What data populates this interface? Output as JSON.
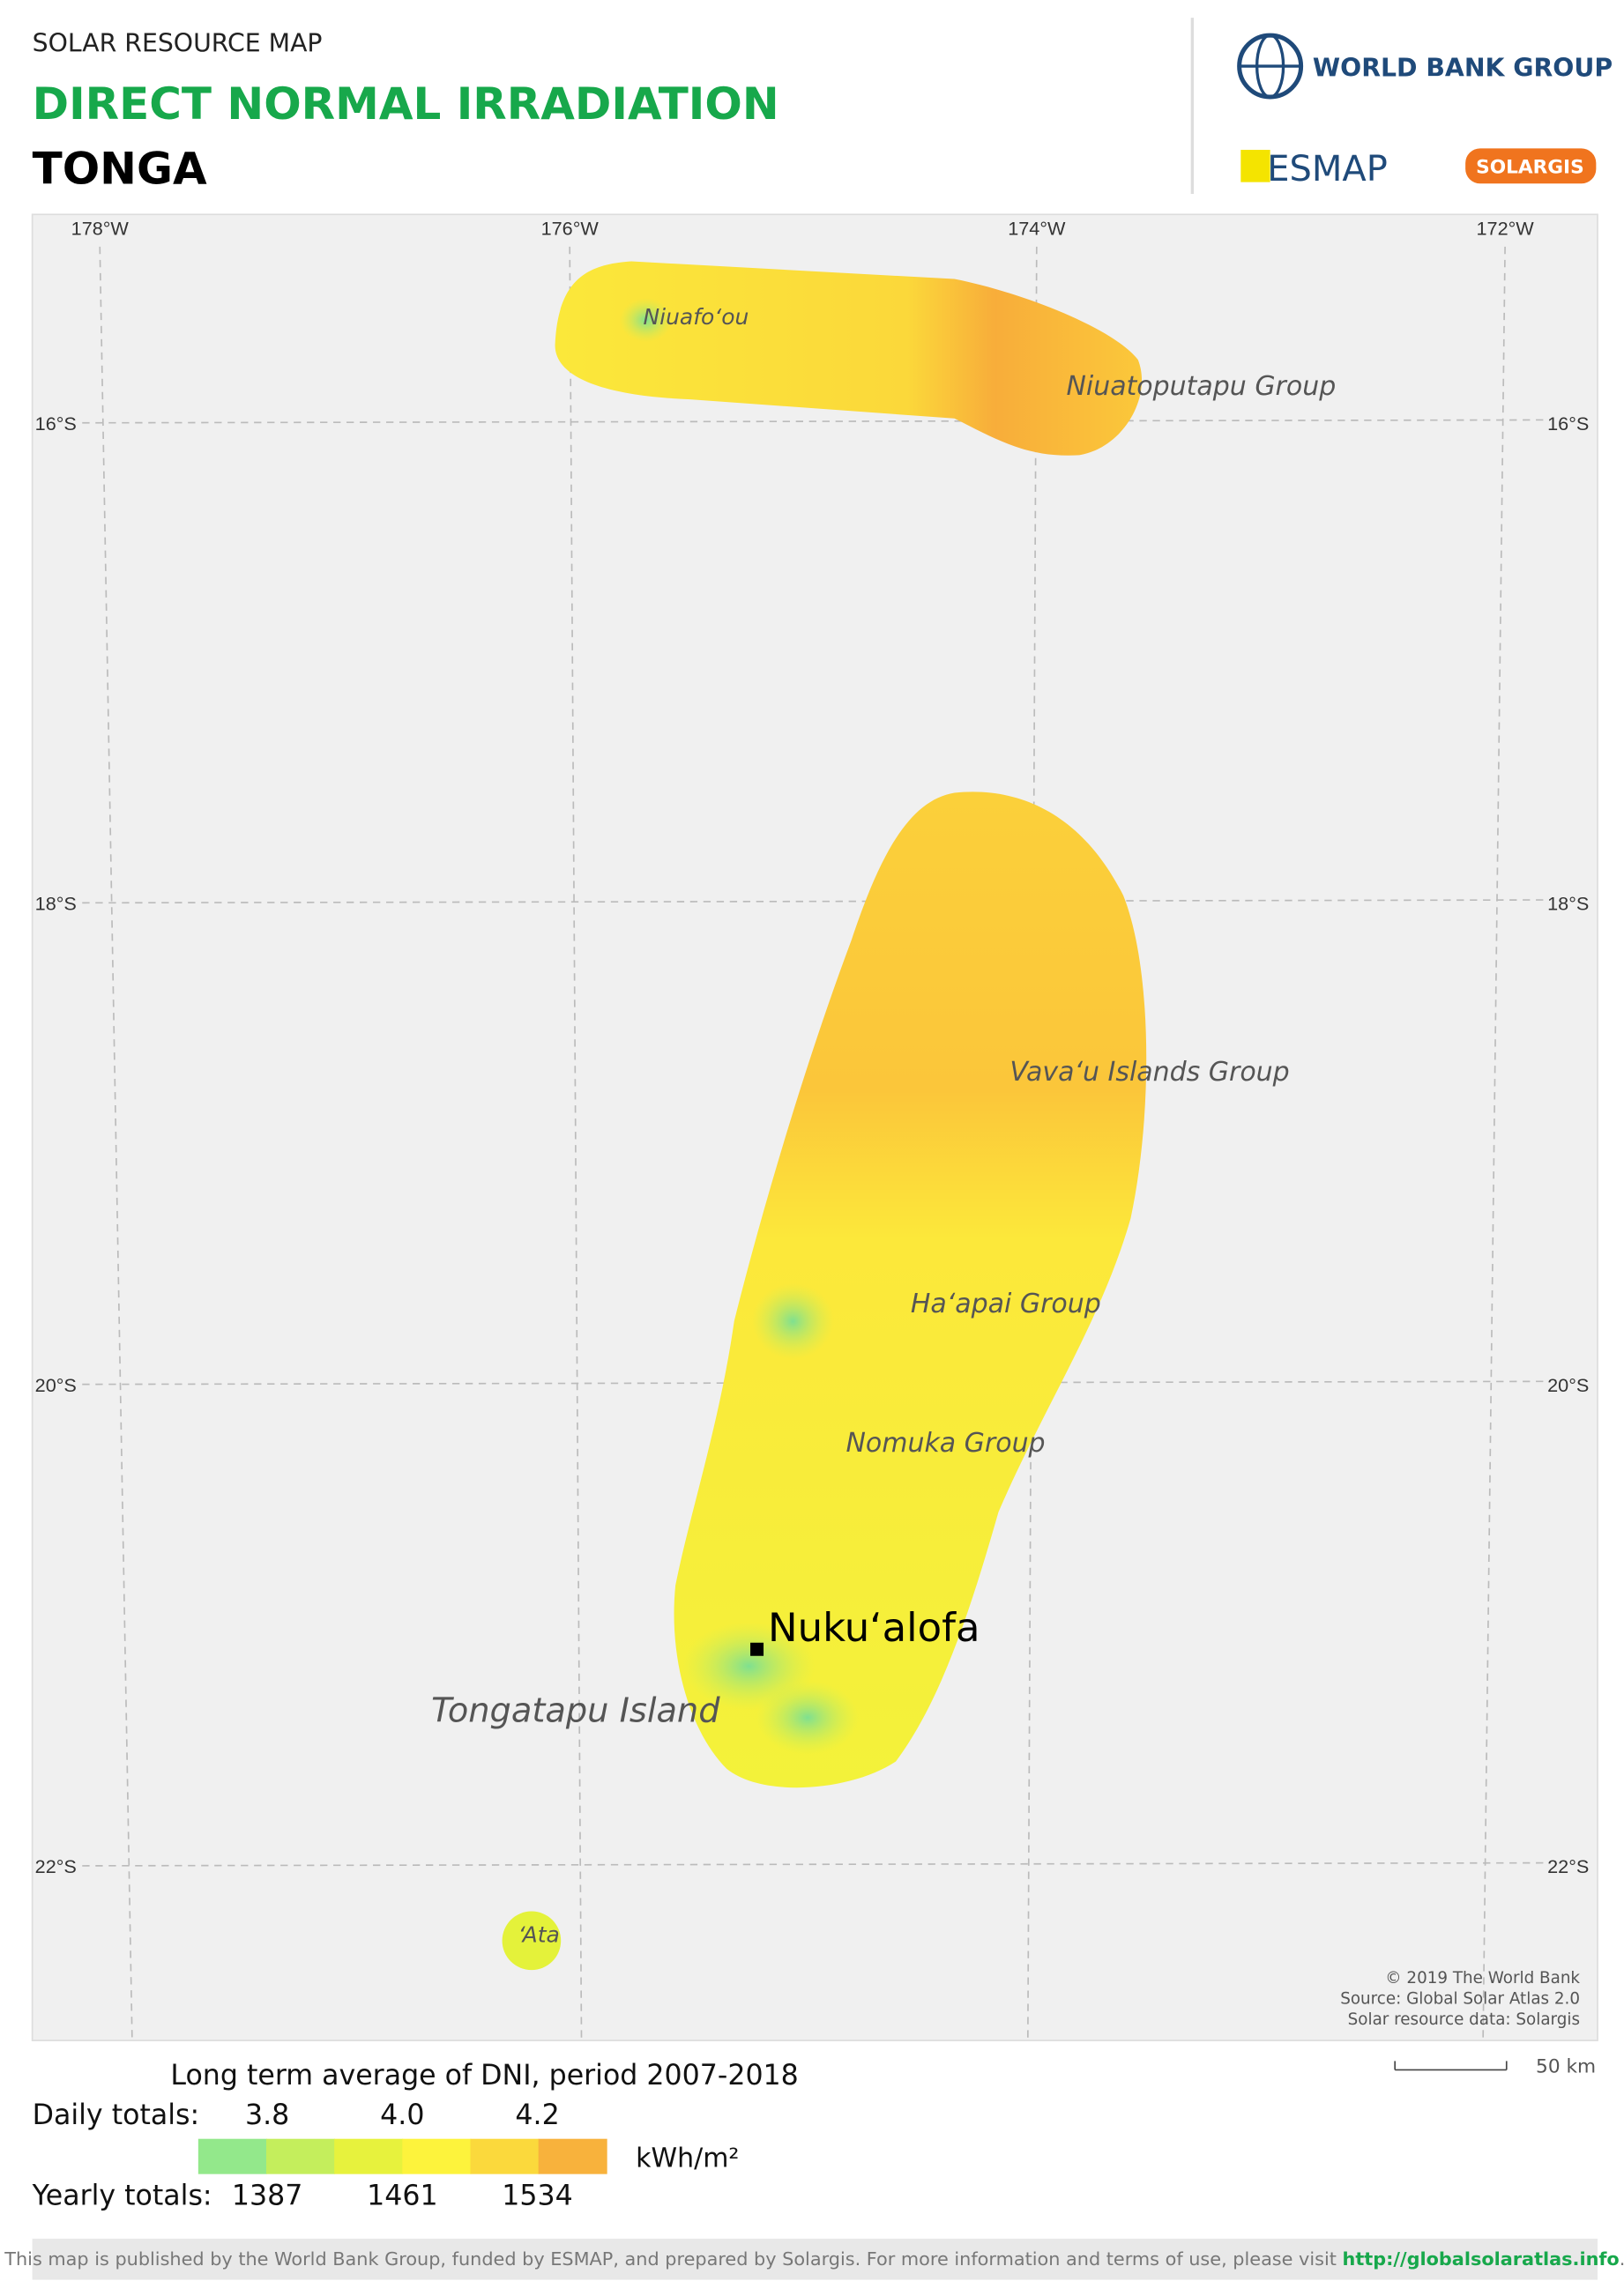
{
  "header": {
    "subtitle": "SOLAR RESOURCE MAP",
    "title": "DIRECT NORMAL IRRADIATION",
    "country": "TONGA"
  },
  "logos": {
    "world_bank": "WORLD BANK GROUP",
    "esmap": "ESMAP",
    "solargis": "SOLARGIS"
  },
  "map": {
    "longitudes": [
      "178°W",
      "176°W",
      "174°W",
      "172°W"
    ],
    "latitudes": [
      "16°S",
      "18°S",
      "20°S",
      "22°S"
    ],
    "places": [
      {
        "label": "Niuafoʻou"
      },
      {
        "label": "Niuatoputapu Group"
      },
      {
        "label": "Vavaʻu Islands Group"
      },
      {
        "label": "Haʻapai Group"
      },
      {
        "label": "Nomuka Group"
      },
      {
        "label": "Tongatapu Island"
      },
      {
        "label": "ʻAta"
      }
    ],
    "capital": "Nukuʻalofa",
    "credits": [
      "© 2019 The World Bank",
      "Source: Global Solar Atlas 2.0",
      "Solar resource data: Solargis"
    ],
    "scale": "50 km"
  },
  "legend": {
    "title": "Long term average of DNI, period 2007-2018",
    "daily_label": "Daily totals:",
    "daily": [
      "3.8",
      "4.0",
      "4.2"
    ],
    "unit": "kWh/m²",
    "yearly_label": "Yearly totals:",
    "yearly": [
      "1387",
      "1461",
      "1534"
    ],
    "colors": [
      "#93e88b",
      "#c4ee5c",
      "#e7f23d",
      "#fdf33c",
      "#fbd93c",
      "#f8b23c"
    ]
  },
  "footer": {
    "text": "This map is published by the World Bank Group, funded by ESMAP, and prepared by Solargis. For more information and terms of use, please visit ",
    "link": "http://globalsolaratlas.info",
    "end": "."
  }
}
